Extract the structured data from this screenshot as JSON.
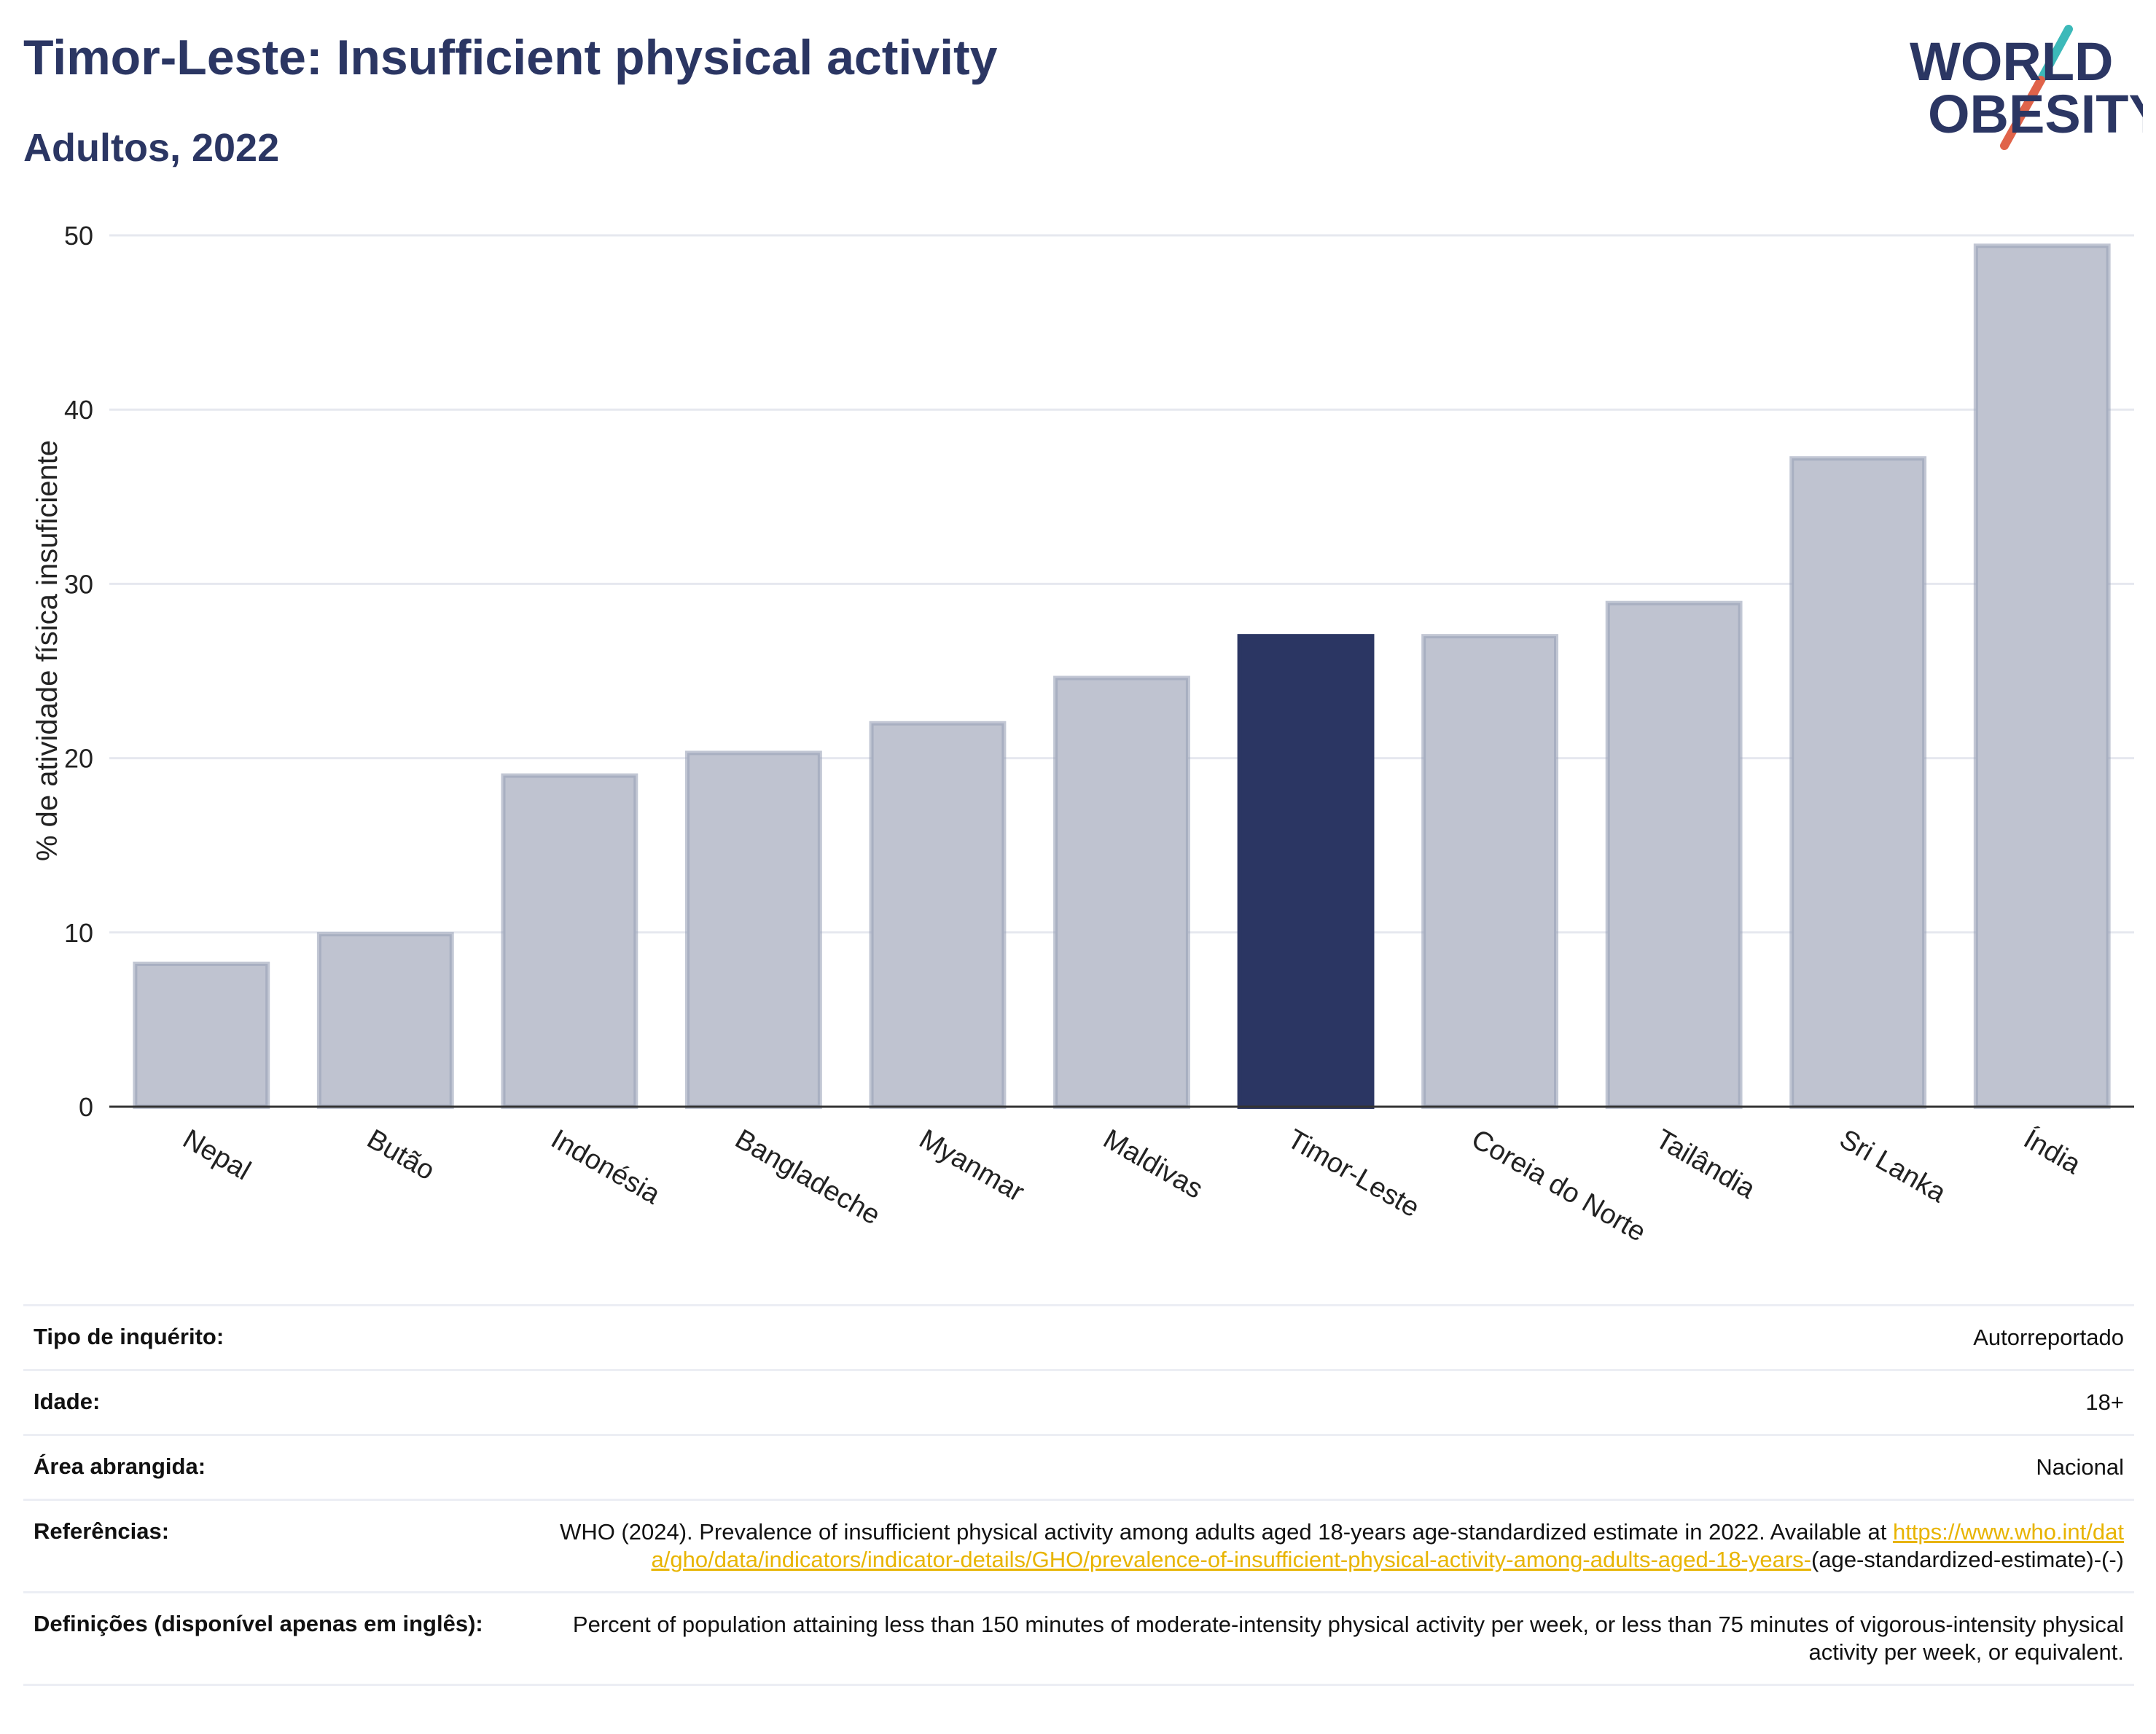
{
  "header": {
    "title": "Timor-Leste: Insufficient physical activity",
    "subtitle": "Adultos, 2022"
  },
  "logo": {
    "line1": "WORLD",
    "line2": "OBESITY",
    "colors": {
      "text": "#2b3663",
      "slash_teal": "#3cb9b9",
      "slash_red": "#e0634a"
    }
  },
  "colors": {
    "highlight_bar": "#2b3663",
    "other_bar_fill": "#bfc3d0",
    "other_bar_stroke": "#9aa1b8",
    "grid": "#e6e8ef",
    "axis": "#333333",
    "link": "#e8b400"
  },
  "chart_data": {
    "type": "bar",
    "ylabel": "% de atividade física insuficiente",
    "ylim": [
      0,
      50
    ],
    "yticks": [
      0,
      10,
      20,
      30,
      40,
      50
    ],
    "grid": true,
    "highlight": "Timor-Leste",
    "categories": [
      "Nepal",
      "Butão",
      "Indonésia",
      "Bangladeche",
      "Myanmar",
      "Maldivas",
      "Timor-Leste",
      "Coreia do Norte",
      "Tailândia",
      "Sri Lanka",
      "Índia"
    ],
    "values": [
      8.2,
      9.9,
      19.0,
      20.3,
      22.0,
      24.6,
      27.0,
      27.0,
      28.9,
      37.2,
      49.4
    ]
  },
  "info": [
    {
      "label": "Tipo de inquérito:",
      "value": "Autorreportado"
    },
    {
      "label": "Idade:",
      "value": "18+"
    },
    {
      "label": "Área abrangida:",
      "value": "Nacional"
    },
    {
      "label": "Referências:",
      "value": "WHO (2024). Prevalence of insufficient physical activity among adults aged 18-years age-standardized estimate in 2022. Available at",
      "link": "https://www.who.int/data/gho/data/indicators/indicator-details/GHO/prevalence-of-insufficient-physical-activity-among-adults-aged-18-years-",
      "suffix": "(age-standardized-estimate)-(-)"
    },
    {
      "label": "Definições (disponível apenas em inglês):",
      "value": "Percent of population attaining less than 150 minutes of moderate-intensity physical activity per week, or less than 75 minutes of vigorous-intensity physical activity per week, or equivalent."
    }
  ]
}
